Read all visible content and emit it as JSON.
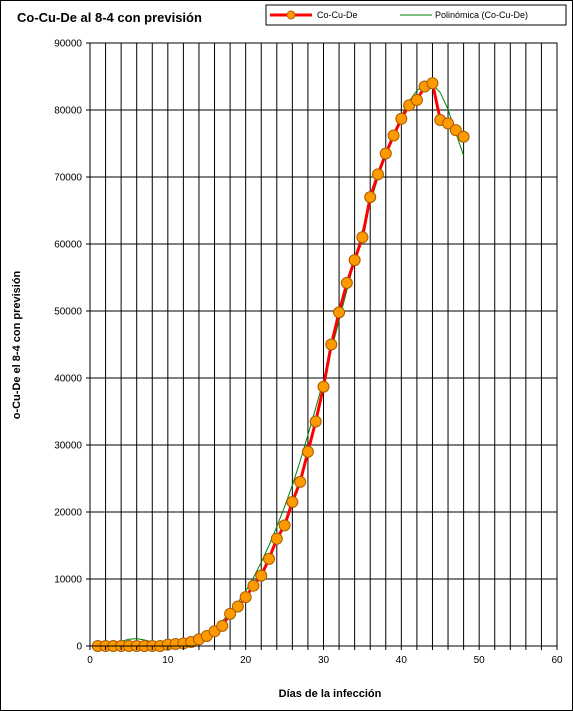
{
  "chart_data": {
    "type": "line",
    "title": "Co-Cu-De  al 8-4  con previsión",
    "xlabel": "Días de la infección",
    "ylabel": "o-Cu-De el 8-4  con previsión",
    "xlim": [
      0,
      60
    ],
    "ylim": [
      0,
      90000
    ],
    "x_ticks": [
      0,
      10,
      20,
      30,
      40,
      50,
      60
    ],
    "y_ticks": [
      0,
      10000,
      20000,
      30000,
      40000,
      50000,
      60000,
      70000,
      80000,
      90000
    ],
    "x_minor_step": 2,
    "grid": true,
    "legend_position": "top-right",
    "series": [
      {
        "name": "Co-Cu-De",
        "color": "#ff0000",
        "marker_color": "#ff9900",
        "x": [
          1,
          2,
          3,
          4,
          5,
          6,
          7,
          8,
          9,
          10,
          11,
          12,
          13,
          14,
          15,
          16,
          17,
          18,
          19,
          20,
          21,
          22,
          23,
          24,
          25,
          26,
          27,
          28,
          29,
          30,
          31,
          32,
          33,
          34,
          35,
          36,
          37,
          38,
          39,
          40,
          41,
          42,
          43,
          44,
          45,
          46,
          47,
          48
        ],
        "values": [
          0,
          0,
          0,
          0,
          0,
          0,
          0,
          0,
          0,
          200,
          300,
          400,
          600,
          1000,
          1500,
          2200,
          3000,
          4800,
          5900,
          7300,
          9000,
          10500,
          13000,
          16000,
          18000,
          21500,
          24500,
          29000,
          33500,
          38700,
          45000,
          49800,
          54200,
          57600,
          61000,
          67000,
          70400,
          73500,
          76200,
          78700,
          80700,
          81500,
          83500,
          84000,
          78500,
          78000,
          77000,
          76000
        ]
      },
      {
        "name": "Polinómica (Co-Cu-De)",
        "color": "#008000",
        "x": [
          1,
          2,
          3,
          4,
          5,
          6,
          7,
          8,
          9,
          10,
          11,
          12,
          13,
          14,
          15,
          16,
          17,
          18,
          19,
          20,
          21,
          22,
          23,
          24,
          25,
          26,
          27,
          28,
          29,
          30,
          31,
          32,
          33,
          34,
          35,
          36,
          37,
          38,
          39,
          40,
          41,
          42,
          43,
          44,
          45,
          46,
          47,
          48
        ],
        "values": [
          0,
          0,
          300,
          700,
          1000,
          1100,
          900,
          600,
          400,
          300,
          300,
          500,
          800,
          1200,
          1800,
          2600,
          3700,
          5000,
          6500,
          8200,
          10200,
          12500,
          15000,
          17800,
          20800,
          24000,
          27600,
          31500,
          35500,
          39700,
          44100,
          48600,
          53100,
          57600,
          62000,
          66100,
          69900,
          73300,
          76400,
          79100,
          81300,
          82900,
          83800,
          83800,
          82600,
          80100,
          76600,
          73200
        ]
      }
    ]
  }
}
